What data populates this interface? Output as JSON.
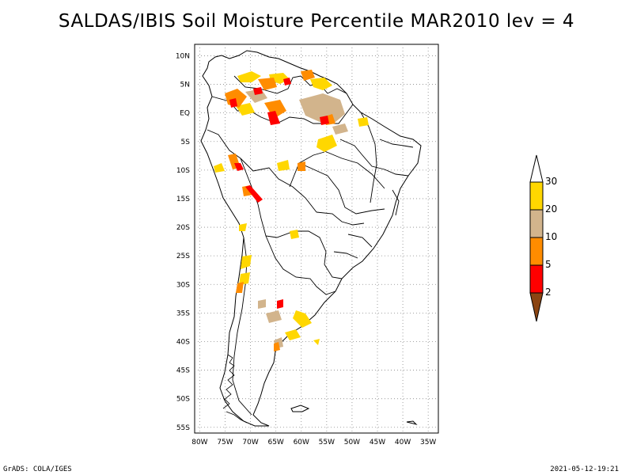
{
  "title": "SALDAS/IBIS Soil Moisture Percentile MAR2010 lev = 4",
  "map": {
    "lat_labels": [
      "10N",
      "5N",
      "EQ",
      "5S",
      "10S",
      "15S",
      "20S",
      "25S",
      "30S",
      "35S",
      "40S",
      "45S",
      "50S",
      "55S"
    ],
    "lon_labels": [
      "80W",
      "75W",
      "70W",
      "65W",
      "60W",
      "55W",
      "50W",
      "45W",
      "40W",
      "35W"
    ]
  },
  "legend": {
    "labels": [
      "30",
      "20",
      "10",
      "5",
      "2"
    ],
    "colors": {
      "above_30": "#ffffff",
      "20_30": "#ffd700",
      "10_20": "#d2b48c",
      "5_10": "#ff8c00",
      "2_5": "#ff0000",
      "below_2": "#8b4513"
    }
  },
  "footer": {
    "left": "GrADS: COLA/IGES",
    "right": "2021-05-12-19:21"
  }
}
